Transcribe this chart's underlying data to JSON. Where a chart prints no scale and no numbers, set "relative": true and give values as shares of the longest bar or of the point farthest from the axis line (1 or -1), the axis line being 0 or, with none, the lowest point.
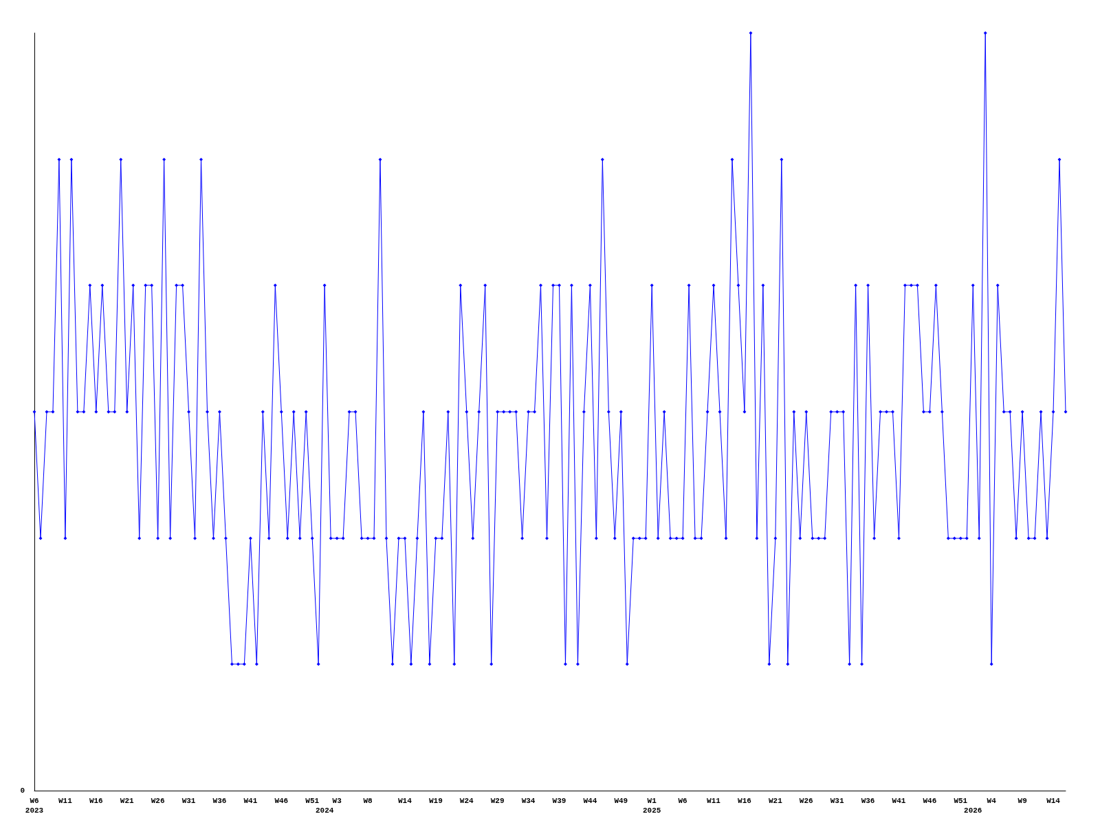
{
  "chart_data": {
    "type": "line",
    "relative": true,
    "color": "#0000ff",
    "marker": "diamond",
    "annotations": [
      "0"
    ],
    "categories": [
      "W6\n2023",
      null,
      null,
      null,
      null,
      "W11",
      null,
      null,
      null,
      null,
      "W16",
      null,
      null,
      null,
      null,
      "W21",
      null,
      null,
      null,
      null,
      "W26",
      null,
      null,
      null,
      null,
      "W31",
      null,
      null,
      null,
      null,
      "W36",
      null,
      null,
      null,
      null,
      "W41",
      null,
      null,
      null,
      null,
      "W46",
      null,
      null,
      null,
      null,
      "W51",
      null,
      "\n2024",
      null,
      "W3",
      null,
      null,
      null,
      null,
      "W8",
      null,
      null,
      null,
      null,
      null,
      "W14",
      null,
      null,
      null,
      null,
      "W19",
      null,
      null,
      null,
      null,
      "W24",
      null,
      null,
      null,
      null,
      "W29",
      null,
      null,
      null,
      null,
      "W34",
      null,
      null,
      null,
      null,
      "W39",
      null,
      null,
      null,
      null,
      "W44",
      null,
      null,
      null,
      null,
      "W49",
      null,
      null,
      null,
      null,
      "W1\n2025",
      null,
      null,
      null,
      null,
      "W6",
      null,
      null,
      null,
      null,
      "W11",
      null,
      null,
      null,
      null,
      "W16",
      null,
      null,
      null,
      null,
      "W21",
      null,
      null,
      null,
      null,
      "W26",
      null,
      null,
      null,
      null,
      "W31",
      null,
      null,
      null,
      null,
      "W36",
      null,
      null,
      null,
      null,
      "W41",
      null,
      null,
      null,
      null,
      "W46",
      null,
      null,
      null,
      null,
      "W51",
      null,
      "\n2026",
      null,
      null,
      "W4",
      null,
      null,
      null,
      null,
      "W9",
      null,
      null,
      null,
      null,
      "W14",
      null,
      null
    ],
    "values": [
      0.5,
      0.333,
      0.5,
      0.5,
      0.833,
      0.333,
      0.833,
      0.5,
      0.5,
      0.667,
      0.5,
      0.667,
      0.5,
      0.5,
      0.833,
      0.5,
      0.667,
      0.333,
      0.667,
      0.667,
      0.333,
      0.833,
      0.333,
      0.667,
      0.667,
      0.5,
      0.333,
      0.833,
      0.5,
      0.333,
      0.5,
      0.333,
      0.167,
      0.167,
      0.167,
      0.333,
      0.167,
      0.5,
      0.333,
      0.667,
      0.5,
      0.333,
      0.5,
      0.333,
      0.5,
      0.333,
      0.167,
      0.667,
      0.333,
      0.333,
      0.333,
      0.5,
      0.5,
      0.333,
      0.333,
      0.333,
      0.833,
      0.333,
      0.167,
      0.333,
      0.333,
      0.167,
      0.333,
      0.5,
      0.167,
      0.333,
      0.333,
      0.5,
      0.167,
      0.667,
      0.5,
      0.333,
      0.5,
      0.667,
      0.167,
      0.5,
      0.5,
      0.5,
      0.5,
      0.333,
      0.5,
      0.5,
      0.667,
      0.333,
      0.667,
      0.667,
      0.167,
      0.667,
      0.167,
      0.5,
      0.667,
      0.333,
      0.833,
      0.5,
      0.333,
      0.5,
      0.167,
      0.333,
      0.333,
      0.333,
      0.667,
      0.333,
      0.5,
      0.333,
      0.333,
      0.333,
      0.667,
      0.333,
      0.333,
      0.5,
      0.667,
      0.5,
      0.333,
      0.833,
      0.667,
      0.5,
      1,
      0.333,
      0.667,
      0.167,
      0.333,
      0.833,
      0.167,
      0.5,
      0.333,
      0.5,
      0.333,
      0.333,
      0.333,
      0.5,
      0.5,
      0.5,
      0.167,
      0.667,
      0.167,
      0.667,
      0.333,
      0.5,
      0.5,
      0.5,
      0.333,
      0.667,
      0.667,
      0.667,
      0.5,
      0.5,
      0.667,
      0.5,
      0.333,
      0.333,
      0.333,
      0.333,
      0.667,
      0.333,
      1,
      0.167,
      0.667,
      0.5,
      0.5,
      0.333,
      0.5,
      0.333,
      0.333,
      0.5,
      0.333,
      0.5,
      0.833,
      0.5
    ]
  }
}
